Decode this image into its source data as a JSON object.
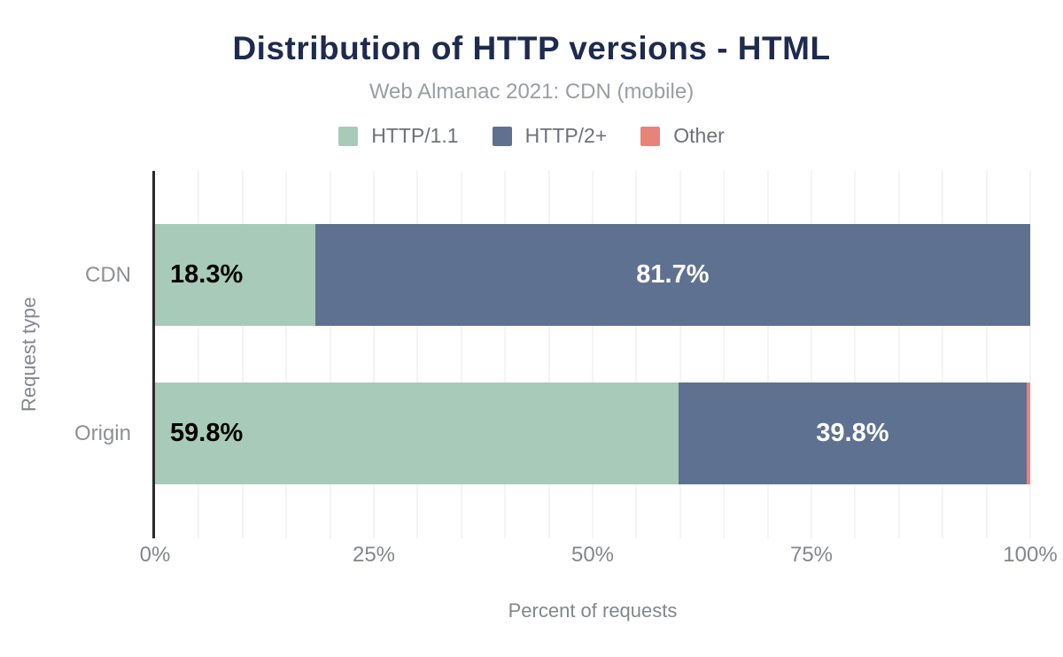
{
  "chart_data": {
    "type": "bar",
    "orientation": "horizontal",
    "stacked": true,
    "title": "Distribution of HTTP versions - HTML",
    "subtitle": "Web Almanac 2021: CDN (mobile)",
    "xlabel": "Percent of requests",
    "ylabel": "Request type",
    "categories": [
      "CDN",
      "Origin"
    ],
    "series": [
      {
        "name": "HTTP/1.1",
        "color": "#a7cbb8",
        "values": [
          18.3,
          59.8
        ]
      },
      {
        "name": "HTTP/2+",
        "color": "#5f7190",
        "values": [
          81.7,
          39.8
        ]
      },
      {
        "name": "Other",
        "color": "#e8837a",
        "values": [
          0.0,
          0.4
        ]
      }
    ],
    "bar_value_labels": [
      [
        "18.3%",
        "81.7%",
        ""
      ],
      [
        "59.8%",
        "39.8%",
        ""
      ]
    ],
    "xlim": [
      0,
      100
    ],
    "x_ticks": [
      {
        "value": 0,
        "label": "0%"
      },
      {
        "value": 25,
        "label": "25%"
      },
      {
        "value": 50,
        "label": "50%"
      },
      {
        "value": 75,
        "label": "75%"
      },
      {
        "value": 100,
        "label": "100%"
      }
    ],
    "grid": {
      "on": true,
      "step": 5
    },
    "legend_position": "top",
    "colors": {
      "title": "#1e2b4f",
      "subtitle": "#9a9ea3",
      "legend_text": "#6e7277",
      "axis_text": "#83878c",
      "axis_line": "#2b2b2b",
      "gridline": "#f4f4f4",
      "label_on_light": "#000000",
      "label_on_dark": "#ffffff",
      "background": "#ffffff"
    }
  }
}
